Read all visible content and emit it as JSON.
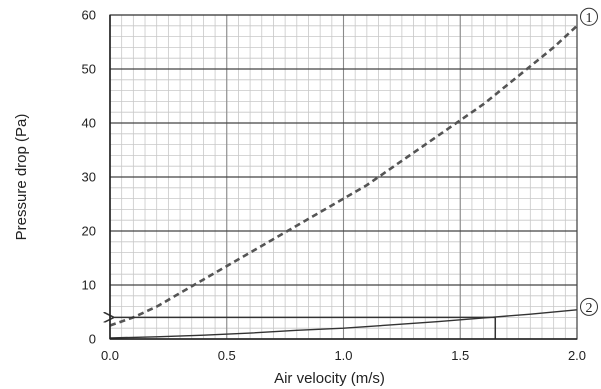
{
  "chart_data": {
    "type": "line",
    "xlabel": "Air velocity (m/s)",
    "ylabel": "Pressure drop (Pa)",
    "xlim": [
      0.0,
      2.0
    ],
    "ylim": [
      0,
      60
    ],
    "x_ticks": [
      0.0,
      0.5,
      1.0,
      1.5,
      2.0
    ],
    "x_tick_labels": [
      "0.0",
      "0.5",
      "1.0",
      "1.5",
      "2.0"
    ],
    "y_ticks": [
      0,
      10,
      20,
      30,
      40,
      50,
      60
    ],
    "y_tick_labels": [
      "0",
      "10",
      "20",
      "30",
      "40",
      "50",
      "60"
    ],
    "minor_x_step": 0.05,
    "minor_y_step": 2,
    "grid": true,
    "series": [
      {
        "name": "①",
        "style": "dashed",
        "color": "#555555",
        "x": [
          0.0,
          0.1,
          0.2,
          0.3,
          0.4,
          0.5,
          0.6,
          0.7,
          0.8,
          0.9,
          1.0,
          1.1,
          1.2,
          1.3,
          1.4,
          1.5,
          1.6,
          1.7,
          1.8,
          1.9,
          2.0
        ],
        "y": [
          2.5,
          4.0,
          6.0,
          8.5,
          11.0,
          13.5,
          16.0,
          18.5,
          21.0,
          23.5,
          26.0,
          28.5,
          31.5,
          34.5,
          37.5,
          40.5,
          43.5,
          47.0,
          50.5,
          54.0,
          58.0
        ]
      },
      {
        "name": "②",
        "style": "solid",
        "color": "#333333",
        "x": [
          0.0,
          0.2,
          0.4,
          0.6,
          0.8,
          1.0,
          1.2,
          1.4,
          1.6,
          1.8,
          2.0
        ],
        "y": [
          0.2,
          0.4,
          0.7,
          1.1,
          1.6,
          2.0,
          2.6,
          3.2,
          3.9,
          4.6,
          5.4
        ]
      }
    ],
    "annotations": [
      {
        "type": "lookup",
        "x": 1.65,
        "y": 4.0,
        "arrow_to_x": 0.0,
        "description": "vertical line from x-axis at 1.65 up to curve ②, then horizontal arrow left to the y-axis"
      }
    ]
  }
}
